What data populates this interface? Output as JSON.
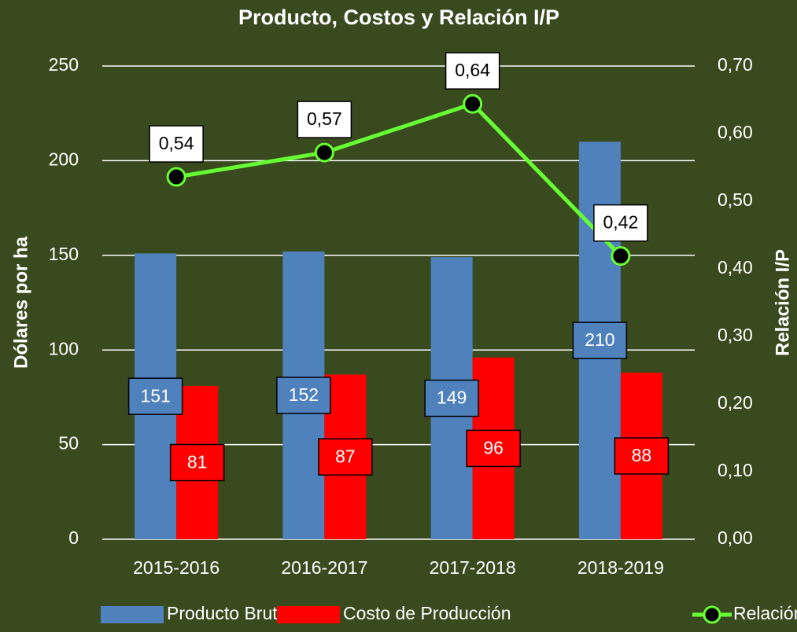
{
  "chart_data": {
    "type": "bar",
    "title": "Producto, Costos y Relación I/P",
    "y_label": "Dólares por ha",
    "y2_label": "Relación I/P",
    "categories": [
      "2015-2016",
      "2016-2017",
      "2017-2018",
      "2018-2019"
    ],
    "series": [
      {
        "name": "Producto Bruto",
        "type": "bar",
        "color": "#4f81bd",
        "values": [
          151,
          152,
          149,
          210
        ]
      },
      {
        "name": "Costo de Producción",
        "type": "bar",
        "color": "#ff0000",
        "values": [
          81,
          87,
          96,
          88
        ]
      },
      {
        "name": "Relación I/P",
        "type": "line",
        "axis": "y2",
        "color": "#66ff33",
        "values": [
          0.536,
          0.572,
          0.644,
          0.419
        ],
        "value_labels": [
          "0,54",
          "0,57",
          "0,64",
          "0,42"
        ]
      }
    ],
    "ylim": [
      0,
      250
    ],
    "yticks": [
      0,
      50,
      100,
      150,
      200,
      250
    ],
    "y2lim": [
      0,
      0.7
    ],
    "y2ticks": [
      {
        "value": 0,
        "label": "0,00"
      },
      {
        "value": 0.1,
        "label": "0,10"
      },
      {
        "value": 0.2,
        "label": "0,20"
      },
      {
        "value": 0.3,
        "label": "0,30"
      },
      {
        "value": 0.4,
        "label": "0,40"
      },
      {
        "value": 0.5,
        "label": "0,50"
      },
      {
        "value": 0.6,
        "label": "0,60"
      },
      {
        "value": 0.7,
        "label": "0,70"
      }
    ],
    "grid": true,
    "legend": "bottom"
  }
}
